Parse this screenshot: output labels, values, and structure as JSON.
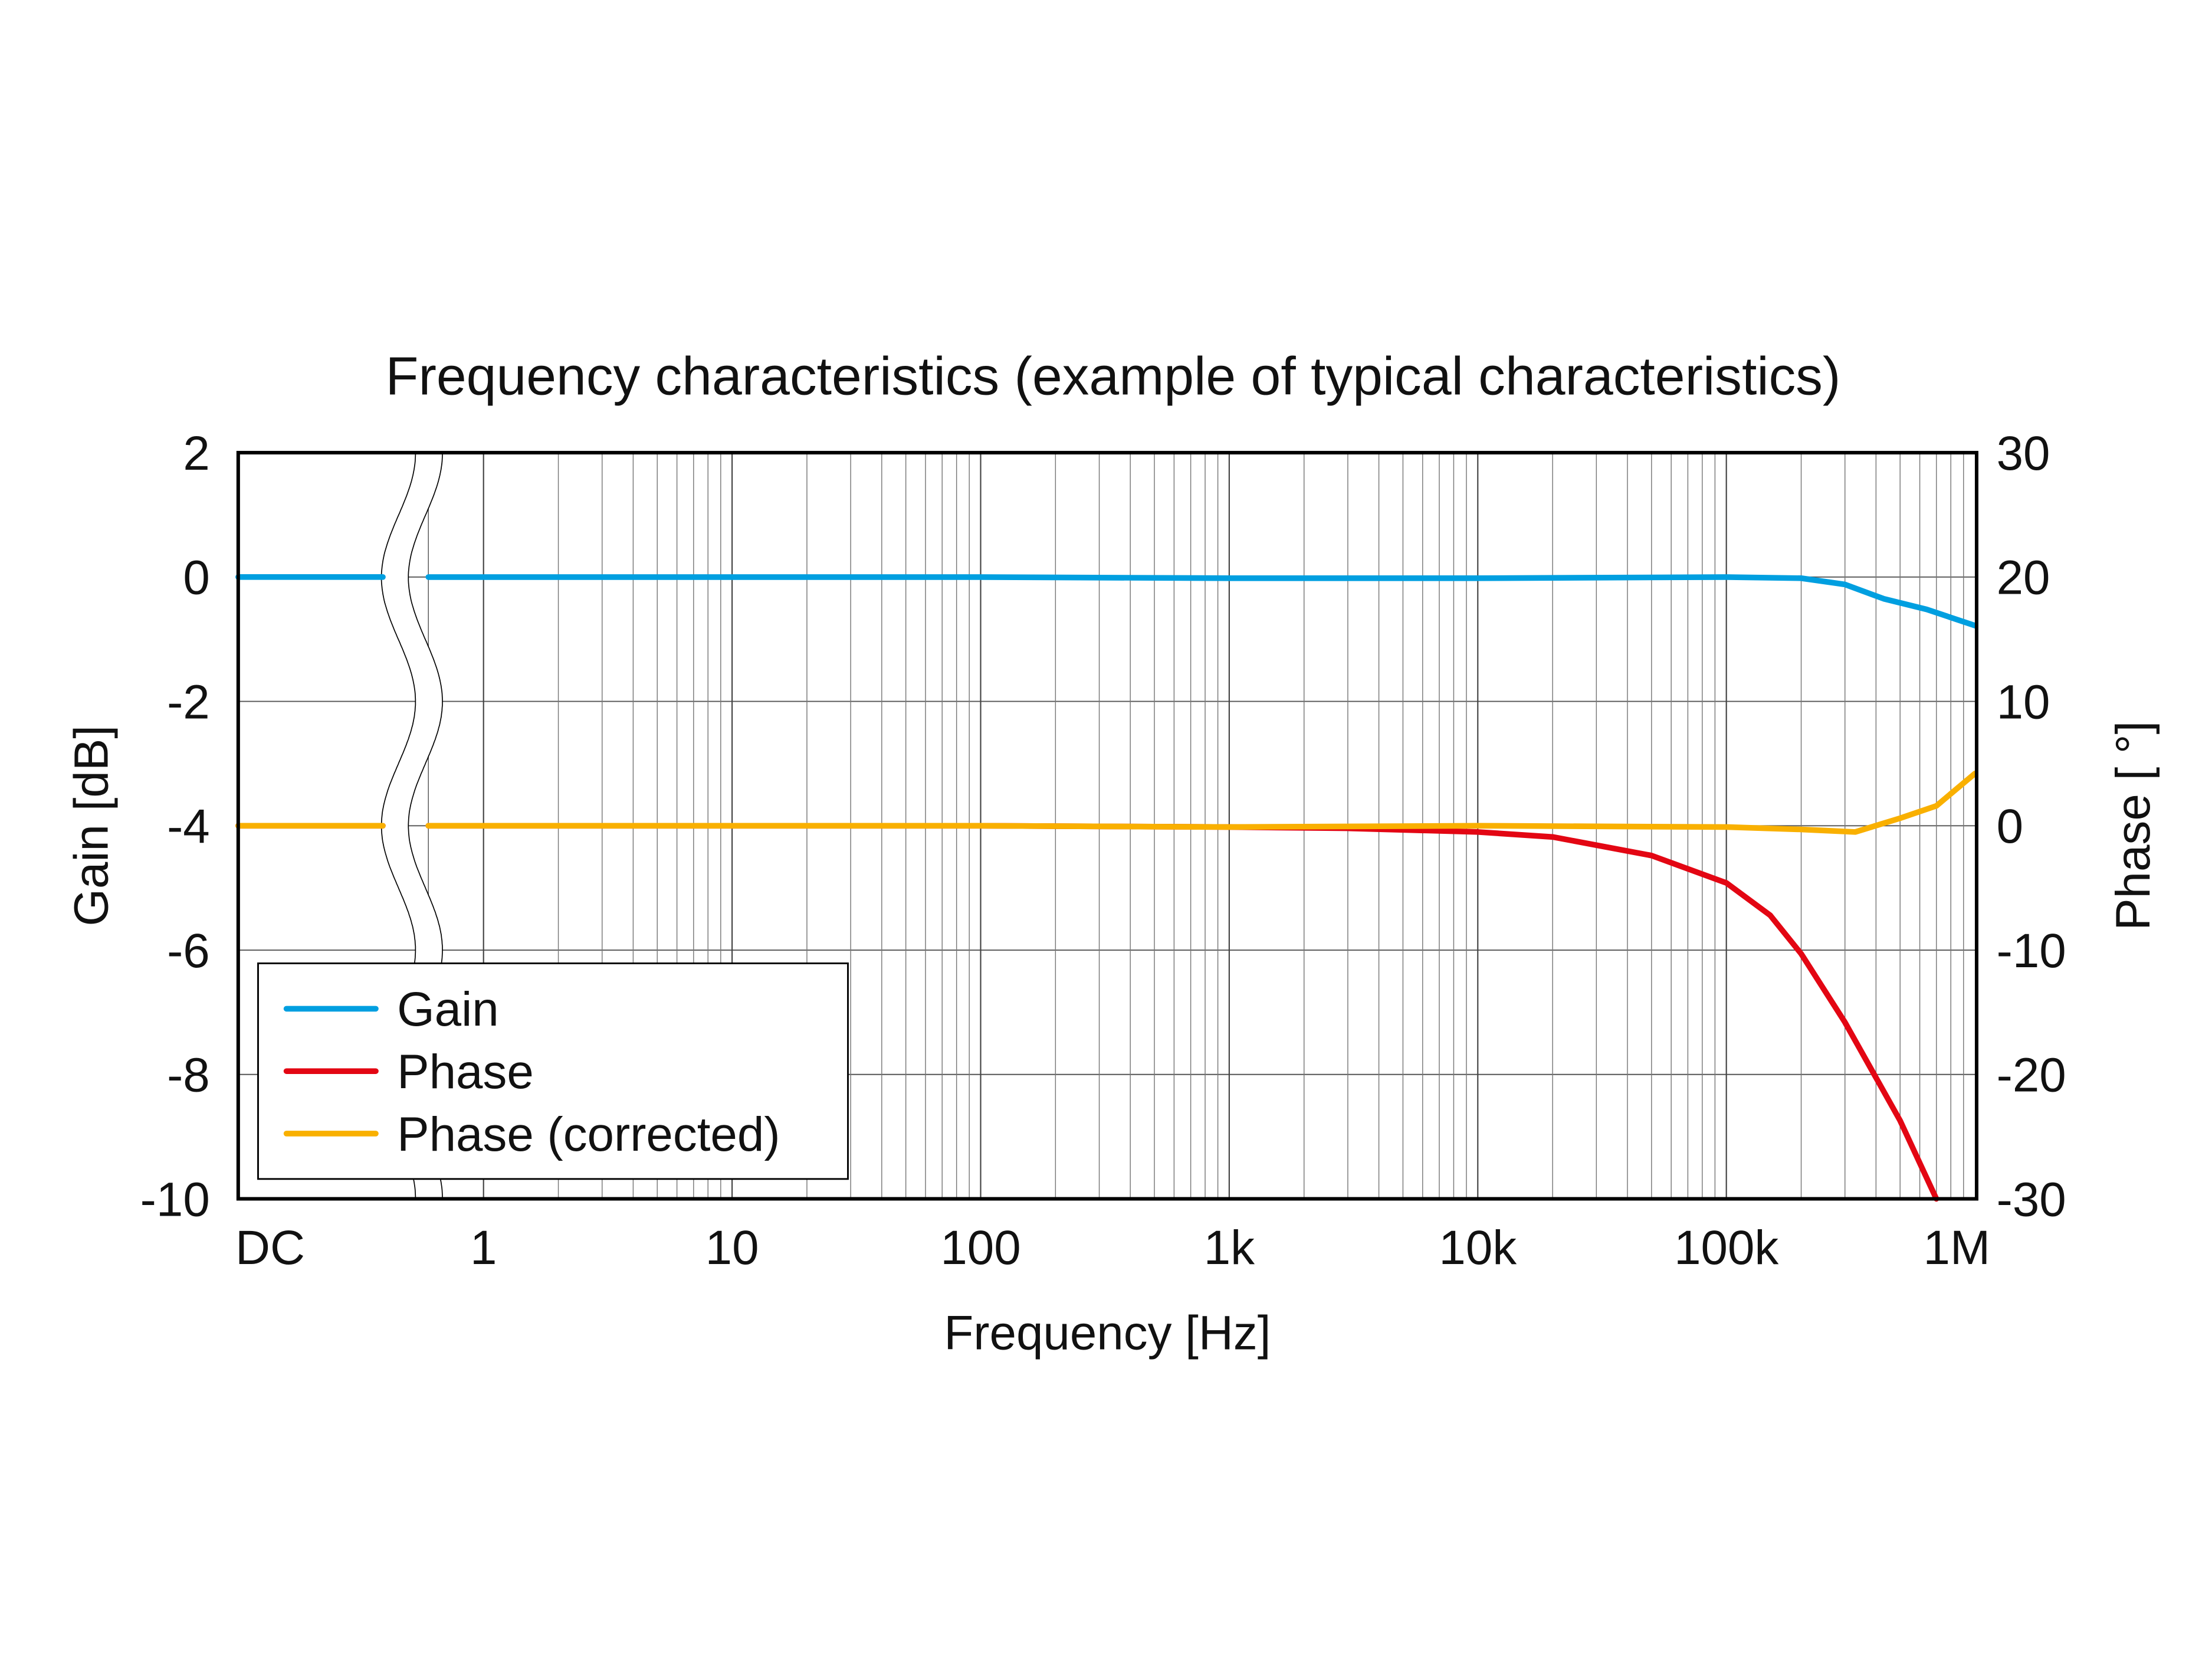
{
  "chart_data": {
    "type": "line",
    "title": "Frequency characteristics (example of typical characteristics)",
    "xlabel": "Frequency [Hz]",
    "ylabel": "Gain [dB]",
    "y2label": "Phase [ °]",
    "xscale": "log with DC break",
    "xlim_hz": [
      1,
      1000000
    ],
    "x_tick_labels": [
      "DC",
      "1",
      "10",
      "100",
      "1k",
      "10k",
      "100k",
      "1M"
    ],
    "x_tick_values": [
      "DC",
      1,
      10,
      100,
      1000,
      10000,
      100000,
      1000000
    ],
    "ylim": [
      -10,
      2
    ],
    "y_ticks": [
      2,
      0,
      -2,
      -4,
      -6,
      -8,
      -10
    ],
    "y2lim": [
      -30,
      30
    ],
    "y2_ticks": [
      30,
      20,
      10,
      0,
      -10,
      -20,
      -30
    ],
    "grid": true,
    "legend_position": "bottom-left",
    "series": [
      {
        "name": "Gain",
        "axis": "left",
        "color": "#009fe0",
        "dc_value": 0.0,
        "x": [
          0.6,
          1,
          10,
          100,
          1000,
          10000,
          100000,
          200000,
          300000,
          430000,
          640000,
          1000000
        ],
        "y": [
          0.0,
          0.0,
          0.0,
          0.0,
          -0.02,
          -0.02,
          0.0,
          -0.02,
          -0.12,
          -0.35,
          -0.52,
          -0.78
        ]
      },
      {
        "name": "Phase",
        "axis": "right",
        "color": "#e30613",
        "dc_value": 0.0,
        "x": [
          0.6,
          1,
          10,
          100,
          1000,
          3000,
          10000,
          20000,
          50000,
          100000,
          150000,
          200000,
          300000,
          500000,
          700000
        ],
        "y": [
          0,
          0,
          0,
          0,
          -0.1,
          -0.2,
          -0.5,
          -0.9,
          -2.4,
          -4.6,
          -7.2,
          -10.3,
          -15.8,
          -23.7,
          -30
        ]
      },
      {
        "name": "Phase (corrected)",
        "axis": "right",
        "color": "#f9b000",
        "dc_value": 0.0,
        "x": [
          0.6,
          1,
          10,
          100,
          1000,
          10000,
          100000,
          200000,
          330000,
          500000,
          700000,
          1000000
        ],
        "y": [
          0,
          0,
          0,
          0,
          -0.1,
          0,
          -0.1,
          -0.3,
          -0.5,
          0.6,
          1.6,
          4.2
        ]
      }
    ]
  }
}
